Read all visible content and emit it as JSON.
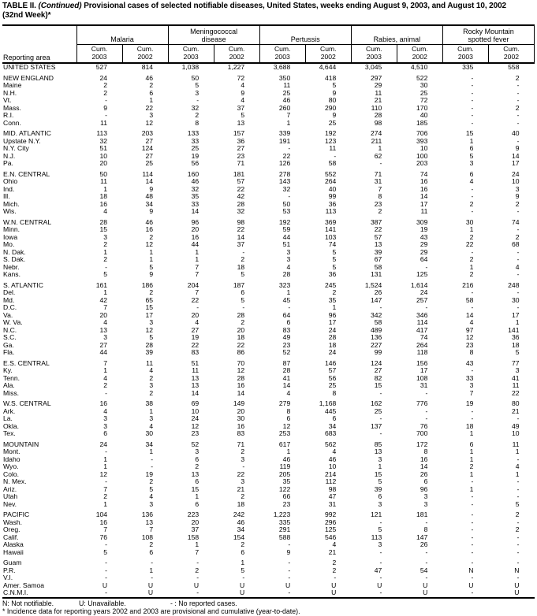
{
  "title": {
    "table_label": "TABLE II.",
    "continued": "(Continued)",
    "text": "Provisional cases of selected notifiable diseases, United States, weeks ending August 9, 2003, and August 10, 2002",
    "week": "(32nd Week)*"
  },
  "table": {
    "header": {
      "reporting_area": "Reporting area",
      "groups": [
        "Malaria",
        "Meningococcal\ndisease",
        "Pertussis",
        "Rabies, animal",
        "Rocky Mountain\nspotted fever"
      ],
      "cum": "Cum.",
      "years": [
        "2003",
        "2002"
      ]
    },
    "rows": [
      {
        "area": "UNITED STATES",
        "type": "total",
        "values": [
          "527",
          "814",
          "1,038",
          "1,227",
          "3,688",
          "4,644",
          "3,045",
          "4,510",
          "335",
          "558"
        ]
      },
      {
        "area": "NEW ENGLAND",
        "type": "region",
        "gap": true,
        "values": [
          "24",
          "46",
          "50",
          "72",
          "350",
          "418",
          "297",
          "522",
          "-",
          "2"
        ]
      },
      {
        "area": "Maine",
        "type": "state",
        "values": [
          "2",
          "2",
          "5",
          "4",
          "11",
          "5",
          "29",
          "30",
          "-",
          "-"
        ]
      },
      {
        "area": "N.H.",
        "type": "state",
        "values": [
          "2",
          "6",
          "3",
          "9",
          "25",
          "9",
          "11",
          "25",
          "-",
          "-"
        ]
      },
      {
        "area": "Vt.",
        "type": "state",
        "values": [
          "-",
          "1",
          "-",
          "4",
          "46",
          "80",
          "21",
          "72",
          "-",
          "-"
        ]
      },
      {
        "area": "Mass.",
        "type": "state",
        "values": [
          "9",
          "22",
          "32",
          "37",
          "260",
          "290",
          "110",
          "170",
          "-",
          "2"
        ]
      },
      {
        "area": "R.I.",
        "type": "state",
        "values": [
          "-",
          "3",
          "2",
          "5",
          "7",
          "9",
          "28",
          "40",
          "-",
          "-"
        ]
      },
      {
        "area": "Conn.",
        "type": "state",
        "values": [
          "11",
          "12",
          "8",
          "13",
          "1",
          "25",
          "98",
          "185",
          "-",
          "-"
        ]
      },
      {
        "area": "MID. ATLANTIC",
        "type": "region",
        "gap": true,
        "values": [
          "113",
          "203",
          "133",
          "157",
          "339",
          "192",
          "274",
          "706",
          "15",
          "40"
        ]
      },
      {
        "area": "Upstate N.Y.",
        "type": "state",
        "values": [
          "32",
          "27",
          "33",
          "36",
          "191",
          "123",
          "211",
          "393",
          "1",
          "-"
        ]
      },
      {
        "area": "N.Y. City",
        "type": "state",
        "values": [
          "51",
          "124",
          "25",
          "27",
          "-",
          "11",
          "1",
          "10",
          "6",
          "9"
        ]
      },
      {
        "area": "N.J.",
        "type": "state",
        "values": [
          "10",
          "27",
          "19",
          "23",
          "22",
          "-",
          "62",
          "100",
          "5",
          "14"
        ]
      },
      {
        "area": "Pa.",
        "type": "state",
        "values": [
          "20",
          "25",
          "56",
          "71",
          "126",
          "58",
          "-",
          "203",
          "3",
          "17"
        ]
      },
      {
        "area": "E.N. CENTRAL",
        "type": "region",
        "gap": true,
        "values": [
          "50",
          "114",
          "160",
          "181",
          "278",
          "552",
          "71",
          "74",
          "6",
          "24"
        ]
      },
      {
        "area": "Ohio",
        "type": "state",
        "values": [
          "11",
          "14",
          "46",
          "57",
          "143",
          "264",
          "31",
          "16",
          "4",
          "10"
        ]
      },
      {
        "area": "Ind.",
        "type": "state",
        "values": [
          "1",
          "9",
          "32",
          "22",
          "32",
          "40",
          "7",
          "16",
          "-",
          "3"
        ]
      },
      {
        "area": "Ill.",
        "type": "state",
        "values": [
          "18",
          "48",
          "35",
          "42",
          "-",
          "99",
          "8",
          "14",
          "-",
          "9"
        ]
      },
      {
        "area": "Mich.",
        "type": "state",
        "values": [
          "16",
          "34",
          "33",
          "28",
          "50",
          "36",
          "23",
          "17",
          "2",
          "2"
        ]
      },
      {
        "area": "Wis.",
        "type": "state",
        "values": [
          "4",
          "9",
          "14",
          "32",
          "53",
          "113",
          "2",
          "11",
          "-",
          "-"
        ]
      },
      {
        "area": "W.N. CENTRAL",
        "type": "region",
        "gap": true,
        "values": [
          "28",
          "46",
          "96",
          "98",
          "192",
          "369",
          "387",
          "309",
          "30",
          "74"
        ]
      },
      {
        "area": "Minn.",
        "type": "state",
        "values": [
          "15",
          "16",
          "20",
          "22",
          "59",
          "141",
          "22",
          "19",
          "1",
          "-"
        ]
      },
      {
        "area": "Iowa",
        "type": "state",
        "values": [
          "3",
          "2",
          "16",
          "14",
          "44",
          "103",
          "57",
          "43",
          "2",
          "2"
        ]
      },
      {
        "area": "Mo.",
        "type": "state",
        "values": [
          "2",
          "12",
          "44",
          "37",
          "51",
          "74",
          "13",
          "29",
          "22",
          "68"
        ]
      },
      {
        "area": "N. Dak.",
        "type": "state",
        "values": [
          "1",
          "1",
          "1",
          "-",
          "3",
          "5",
          "39",
          "29",
          "-",
          "-"
        ]
      },
      {
        "area": "S. Dak.",
        "type": "state",
        "values": [
          "2",
          "1",
          "1",
          "2",
          "3",
          "5",
          "67",
          "64",
          "2",
          "-"
        ]
      },
      {
        "area": "Nebr.",
        "type": "state",
        "values": [
          "-",
          "5",
          "7",
          "18",
          "4",
          "5",
          "58",
          "-",
          "1",
          "4"
        ]
      },
      {
        "area": "Kans.",
        "type": "state",
        "values": [
          "5",
          "9",
          "7",
          "5",
          "28",
          "36",
          "131",
          "125",
          "2",
          "-"
        ]
      },
      {
        "area": "S. ATLANTIC",
        "type": "region",
        "gap": true,
        "values": [
          "161",
          "186",
          "204",
          "187",
          "323",
          "245",
          "1,524",
          "1,614",
          "216",
          "248"
        ]
      },
      {
        "area": "Del.",
        "type": "state",
        "values": [
          "1",
          "2",
          "7",
          "6",
          "1",
          "2",
          "26",
          "24",
          "-",
          "-"
        ]
      },
      {
        "area": "Md.",
        "type": "state",
        "values": [
          "42",
          "65",
          "22",
          "5",
          "45",
          "35",
          "147",
          "257",
          "58",
          "30"
        ]
      },
      {
        "area": "D.C.",
        "type": "state",
        "values": [
          "7",
          "15",
          "-",
          "-",
          "-",
          "1",
          "-",
          "-",
          "-",
          "-"
        ]
      },
      {
        "area": "Va.",
        "type": "state",
        "values": [
          "20",
          "17",
          "20",
          "28",
          "64",
          "96",
          "342",
          "346",
          "14",
          "17"
        ]
      },
      {
        "area": "W. Va.",
        "type": "state",
        "values": [
          "4",
          "3",
          "4",
          "2",
          "6",
          "17",
          "58",
          "114",
          "4",
          "1"
        ]
      },
      {
        "area": "N.C.",
        "type": "state",
        "values": [
          "13",
          "12",
          "27",
          "20",
          "83",
          "24",
          "489",
          "417",
          "97",
          "141"
        ]
      },
      {
        "area": "S.C.",
        "type": "state",
        "values": [
          "3",
          "5",
          "19",
          "18",
          "49",
          "28",
          "136",
          "74",
          "12",
          "36"
        ]
      },
      {
        "area": "Ga.",
        "type": "state",
        "values": [
          "27",
          "28",
          "22",
          "22",
          "23",
          "18",
          "227",
          "264",
          "23",
          "18"
        ]
      },
      {
        "area": "Fla.",
        "type": "state",
        "values": [
          "44",
          "39",
          "83",
          "86",
          "52",
          "24",
          "99",
          "118",
          "8",
          "5"
        ]
      },
      {
        "area": "E.S. CENTRAL",
        "type": "region",
        "gap": true,
        "values": [
          "7",
          "11",
          "51",
          "70",
          "87",
          "146",
          "124",
          "156",
          "43",
          "77"
        ]
      },
      {
        "area": "Ky.",
        "type": "state",
        "values": [
          "1",
          "4",
          "11",
          "12",
          "28",
          "57",
          "27",
          "17",
          "-",
          "3"
        ]
      },
      {
        "area": "Tenn.",
        "type": "state",
        "values": [
          "4",
          "2",
          "13",
          "28",
          "41",
          "56",
          "82",
          "108",
          "33",
          "41"
        ]
      },
      {
        "area": "Ala.",
        "type": "state",
        "values": [
          "2",
          "3",
          "13",
          "16",
          "14",
          "25",
          "15",
          "31",
          "3",
          "11"
        ]
      },
      {
        "area": "Miss.",
        "type": "state",
        "values": [
          "-",
          "2",
          "14",
          "14",
          "4",
          "8",
          "-",
          "-",
          "7",
          "22"
        ]
      },
      {
        "area": "W.S. CENTRAL",
        "type": "region",
        "gap": true,
        "values": [
          "16",
          "38",
          "69",
          "149",
          "279",
          "1,168",
          "162",
          "776",
          "19",
          "80"
        ]
      },
      {
        "area": "Ark.",
        "type": "state",
        "values": [
          "4",
          "1",
          "10",
          "20",
          "8",
          "445",
          "25",
          "-",
          "-",
          "21"
        ]
      },
      {
        "area": "La.",
        "type": "state",
        "values": [
          "3",
          "3",
          "24",
          "30",
          "6",
          "6",
          "-",
          "-",
          "-",
          "-"
        ]
      },
      {
        "area": "Okla.",
        "type": "state",
        "values": [
          "3",
          "4",
          "12",
          "16",
          "12",
          "34",
          "137",
          "76",
          "18",
          "49"
        ]
      },
      {
        "area": "Tex.",
        "type": "state",
        "values": [
          "6",
          "30",
          "23",
          "83",
          "253",
          "683",
          "-",
          "700",
          "1",
          "10"
        ]
      },
      {
        "area": "MOUNTAIN",
        "type": "region",
        "gap": true,
        "values": [
          "24",
          "34",
          "52",
          "71",
          "617",
          "562",
          "85",
          "172",
          "6",
          "11"
        ]
      },
      {
        "area": "Mont.",
        "type": "state",
        "values": [
          "-",
          "1",
          "3",
          "2",
          "1",
          "4",
          "13",
          "8",
          "1",
          "1"
        ]
      },
      {
        "area": "Idaho",
        "type": "state",
        "values": [
          "1",
          "-",
          "6",
          "3",
          "46",
          "46",
          "3",
          "16",
          "1",
          "-"
        ]
      },
      {
        "area": "Wyo.",
        "type": "state",
        "values": [
          "1",
          "-",
          "2",
          "-",
          "119",
          "10",
          "1",
          "14",
          "2",
          "4"
        ]
      },
      {
        "area": "Colo.",
        "type": "state",
        "values": [
          "12",
          "19",
          "13",
          "22",
          "205",
          "214",
          "15",
          "26",
          "1",
          "1"
        ]
      },
      {
        "area": "N. Mex.",
        "type": "state",
        "values": [
          "-",
          "2",
          "6",
          "3",
          "35",
          "112",
          "5",
          "6",
          "-",
          "-"
        ]
      },
      {
        "area": "Ariz.",
        "type": "state",
        "values": [
          "7",
          "5",
          "15",
          "21",
          "122",
          "98",
          "39",
          "96",
          "1",
          "-"
        ]
      },
      {
        "area": "Utah",
        "type": "state",
        "values": [
          "2",
          "4",
          "1",
          "2",
          "66",
          "47",
          "6",
          "3",
          "-",
          "-"
        ]
      },
      {
        "area": "Nev.",
        "type": "state",
        "values": [
          "1",
          "3",
          "6",
          "18",
          "23",
          "31",
          "3",
          "3",
          "-",
          "5"
        ]
      },
      {
        "area": "PACIFIC",
        "type": "region",
        "gap": true,
        "values": [
          "104",
          "136",
          "223",
          "242",
          "1,223",
          "992",
          "121",
          "181",
          "-",
          "2"
        ]
      },
      {
        "area": "Wash.",
        "type": "state",
        "values": [
          "16",
          "13",
          "20",
          "46",
          "335",
          "296",
          "-",
          "-",
          "-",
          "-"
        ]
      },
      {
        "area": "Oreg.",
        "type": "state",
        "values": [
          "7",
          "7",
          "37",
          "34",
          "291",
          "125",
          "5",
          "8",
          "-",
          "2"
        ]
      },
      {
        "area": "Calif.",
        "type": "state",
        "values": [
          "76",
          "108",
          "158",
          "154",
          "588",
          "546",
          "113",
          "147",
          "-",
          "-"
        ]
      },
      {
        "area": "Alaska",
        "type": "state",
        "values": [
          "-",
          "2",
          "1",
          "2",
          "-",
          "4",
          "3",
          "26",
          "-",
          "-"
        ]
      },
      {
        "area": "Hawaii",
        "type": "state",
        "values": [
          "5",
          "6",
          "7",
          "6",
          "9",
          "21",
          "-",
          "-",
          "-",
          "-"
        ]
      },
      {
        "area": "Guam",
        "type": "territory",
        "gap": true,
        "values": [
          "-",
          "-",
          "-",
          "1",
          "-",
          "2",
          "-",
          "-",
          "-",
          "-"
        ]
      },
      {
        "area": "P.R.",
        "type": "territory",
        "values": [
          "-",
          "1",
          "2",
          "5",
          "-",
          "2",
          "47",
          "54",
          "N",
          "N"
        ]
      },
      {
        "area": "V.I.",
        "type": "territory",
        "values": [
          "-",
          "-",
          "-",
          "-",
          "-",
          "-",
          "-",
          "-",
          "-",
          "-"
        ]
      },
      {
        "area": "Amer. Samoa",
        "type": "territory",
        "values": [
          "U",
          "U",
          "U",
          "U",
          "U",
          "U",
          "U",
          "U",
          "U",
          "U"
        ]
      },
      {
        "area": "C.N.M.I.",
        "type": "territory",
        "values": [
          "-",
          "U",
          "-",
          "U",
          "-",
          "U",
          "-",
          "U",
          "-",
          "U"
        ]
      }
    ]
  },
  "footnotes": {
    "n": "N: Not notifiable.",
    "u": "U: Unavailable.",
    "dash": "- : No reported cases.",
    "incidence": "* Incidence data for reporting years 2002 and 2003 are provisional and cumulative (year-to-date)."
  }
}
